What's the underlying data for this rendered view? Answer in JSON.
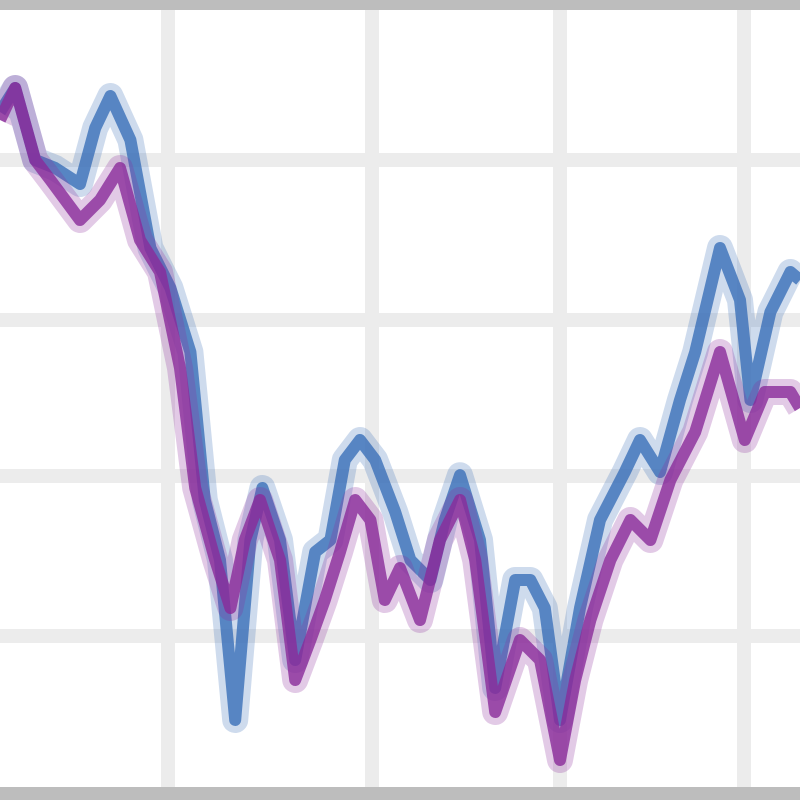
{
  "chart_data": {
    "type": "line",
    "title": "",
    "xlabel": "",
    "ylabel": "",
    "xlim": [
      0,
      100
    ],
    "ylim": [
      0,
      100
    ],
    "grid": true,
    "grid_x": [
      21,
      46.5,
      70,
      93
    ],
    "grid_y": [
      80,
      60,
      40.5,
      20.5
    ],
    "colors": {
      "grid": "#ececec",
      "frame": "#bdbdbd",
      "series_blue": "#3a6fb8",
      "series_purple": "#8a2a9a"
    },
    "series": [
      {
        "color": "#3a6fb8",
        "points": [
          [
            0,
            86
          ],
          [
            1.9,
            89
          ],
          [
            4.4,
            80
          ],
          [
            6.9,
            79
          ],
          [
            10,
            77
          ],
          [
            11.9,
            84
          ],
          [
            13.8,
            88
          ],
          [
            16.3,
            82.5
          ],
          [
            18.8,
            69
          ],
          [
            21.3,
            64
          ],
          [
            23.8,
            56
          ],
          [
            25.6,
            37.5
          ],
          [
            27.5,
            30
          ],
          [
            29.4,
            10
          ],
          [
            31.3,
            32.5
          ],
          [
            32.8,
            39
          ],
          [
            35,
            32.5
          ],
          [
            36.9,
            17.5
          ],
          [
            39.4,
            31
          ],
          [
            41.3,
            32.5
          ],
          [
            43.1,
            42.5
          ],
          [
            45,
            45
          ],
          [
            46.9,
            42.5
          ],
          [
            49.4,
            36
          ],
          [
            51.3,
            30
          ],
          [
            53.8,
            27.5
          ],
          [
            55.6,
            35
          ],
          [
            57.5,
            40.6
          ],
          [
            60,
            32.5
          ],
          [
            61.9,
            14
          ],
          [
            64.4,
            27.5
          ],
          [
            66.3,
            27.5
          ],
          [
            68.1,
            24
          ],
          [
            70,
            10
          ],
          [
            72.5,
            24
          ],
          [
            75,
            35
          ],
          [
            78.1,
            41
          ],
          [
            80,
            45
          ],
          [
            82.5,
            41
          ],
          [
            85,
            50
          ],
          [
            86.9,
            56
          ],
          [
            90,
            69
          ],
          [
            92.5,
            62.5
          ],
          [
            93.8,
            50
          ],
          [
            96.3,
            61
          ],
          [
            98.8,
            66
          ],
          [
            100,
            65
          ]
        ]
      },
      {
        "color": "#8a2a9a",
        "points": [
          [
            0,
            85
          ],
          [
            1.9,
            89
          ],
          [
            4.4,
            80
          ],
          [
            6.3,
            77.5
          ],
          [
            10,
            72.5
          ],
          [
            12.5,
            75
          ],
          [
            15,
            79
          ],
          [
            17.5,
            70
          ],
          [
            20,
            66
          ],
          [
            22.5,
            54
          ],
          [
            24.4,
            39
          ],
          [
            26.9,
            30
          ],
          [
            28.8,
            24
          ],
          [
            30.6,
            32.5
          ],
          [
            32.5,
            37.5
          ],
          [
            35,
            30
          ],
          [
            36.9,
            15
          ],
          [
            38.8,
            20
          ],
          [
            40.6,
            25
          ],
          [
            42.5,
            31
          ],
          [
            44.4,
            37.5
          ],
          [
            46.3,
            35
          ],
          [
            48.1,
            25
          ],
          [
            50,
            29
          ],
          [
            52.5,
            22.5
          ],
          [
            55,
            32.5
          ],
          [
            57.5,
            37.5
          ],
          [
            59.4,
            30
          ],
          [
            61.9,
            11
          ],
          [
            65,
            20
          ],
          [
            67.5,
            17.5
          ],
          [
            70,
            5
          ],
          [
            71.9,
            15
          ],
          [
            73.8,
            22.5
          ],
          [
            76.3,
            30
          ],
          [
            78.8,
            35
          ],
          [
            81.3,
            32.5
          ],
          [
            83.8,
            40
          ],
          [
            86.9,
            46
          ],
          [
            90,
            56
          ],
          [
            93.1,
            45
          ],
          [
            95.6,
            51
          ],
          [
            98.8,
            51
          ],
          [
            100,
            49
          ]
        ]
      }
    ]
  }
}
